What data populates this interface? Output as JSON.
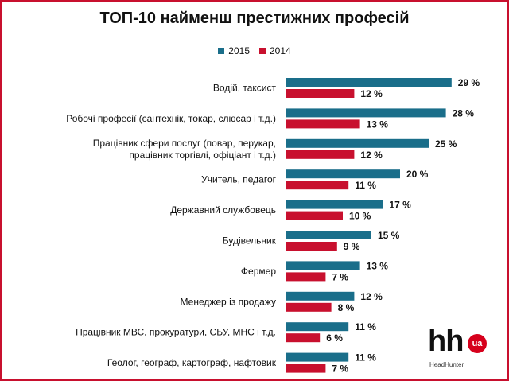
{
  "colors": {
    "s2015": "#1a6e8a",
    "s2014": "#c8102e",
    "frame": "#c8102e",
    "text": "#111111"
  },
  "logo": {
    "main": "hh",
    "badge": "ua",
    "sub": "HeadHunter"
  },
  "chart_data": {
    "type": "bar",
    "orientation": "horizontal",
    "title": "ТОП-10 найменш престижних професій",
    "legend": {
      "position": "top"
    },
    "grid": false,
    "xlim": [
      0,
      30
    ],
    "categories": [
      [
        "Водій, таксист"
      ],
      [
        "Робочі професії (сантехнік, токар, слюсар і т.д.)"
      ],
      [
        "Працівник сфери послуг (повар, перукар,",
        "працівник торгівлі, офіціант і т.д.)"
      ],
      [
        "Учитель, педагог"
      ],
      [
        "Державний службовець"
      ],
      [
        "Будівельник"
      ],
      [
        "Фермер"
      ],
      [
        "Менеджер із продажу"
      ],
      [
        "Працівник МВС, прокуратури, СБУ, МНС і т.д."
      ],
      [
        "Геолог, географ, картограф, нафтовик"
      ]
    ],
    "series": [
      {
        "name": "2015",
        "values": [
          29,
          28,
          25,
          20,
          17,
          15,
          13,
          12,
          11,
          11
        ]
      },
      {
        "name": "2014",
        "values": [
          12,
          13,
          12,
          11,
          10,
          9,
          7,
          8,
          6,
          7
        ]
      }
    ],
    "value_suffix": " %"
  }
}
